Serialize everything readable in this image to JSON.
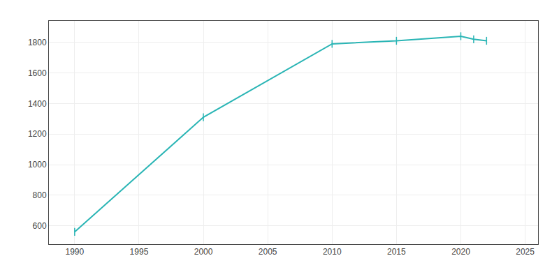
{
  "chart_data": {
    "type": "line",
    "x": [
      1990,
      2000,
      2010,
      2015,
      2020,
      2021,
      2022
    ],
    "values": [
      560,
      1310,
      1790,
      1810,
      1840,
      1820,
      1810
    ],
    "color": "#2ab5b5",
    "marker": "|",
    "xlim": [
      1988,
      2026
    ],
    "ylim": [
      480,
      1940
    ],
    "xticks": [
      1990,
      1995,
      2000,
      2005,
      2010,
      2015,
      2020,
      2025
    ],
    "yticks": [
      600,
      800,
      1000,
      1200,
      1400,
      1600,
      1800
    ],
    "grid": true
  }
}
